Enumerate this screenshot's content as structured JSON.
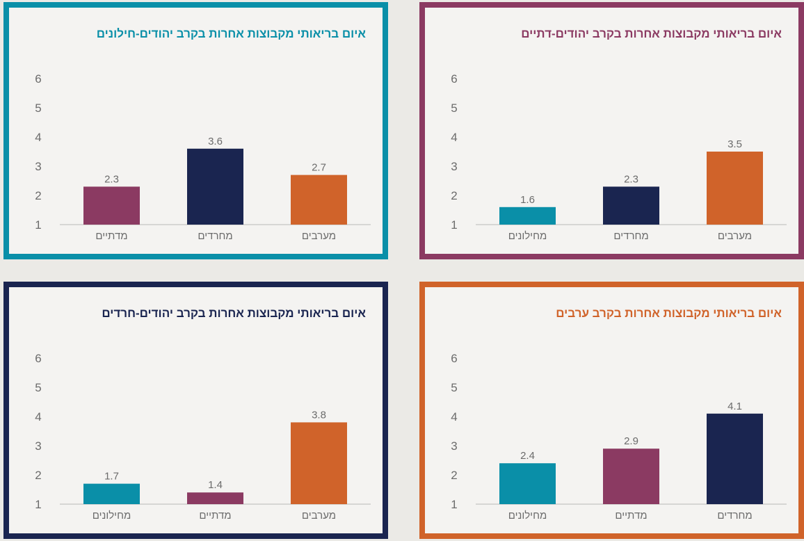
{
  "colors": {
    "teal": "#0a8fa8",
    "plum": "#8b3a62",
    "navy": "#1a2550",
    "orange": "#d0632a",
    "axis_text": "#6b6b6b"
  },
  "panels": [
    {
      "title": "איום בריאותי מקבוצות אחרות בקרב יהודים-דתיים",
      "border_color": "#8b3a62",
      "title_color": "#8b3a62"
    },
    {
      "title": "איום בריאותי מקבוצות אחרות בקרב יהודים-חילונים",
      "border_color": "#0a8fa8",
      "title_color": "#0a8fa8"
    },
    {
      "title": "איום בריאותי מקבוצות אחרות בקרב ערבים",
      "border_color": "#d0632a",
      "title_color": "#d0632a"
    },
    {
      "title": "איום בריאותי מקבוצות אחרות בקרב יהודים-חרדים",
      "border_color": "#1a2550",
      "title_color": "#1a2550"
    }
  ],
  "chart_data": [
    {
      "type": "bar",
      "title": "איום בריאותי מקבוצות אחרות בקרב יהודים-דתיים",
      "categories": [
        "מחילונים",
        "מחרדים",
        "מערבים"
      ],
      "values": [
        1.6,
        2.3,
        3.5
      ],
      "bar_colors": [
        "#0a8fa8",
        "#1a2550",
        "#d0632a"
      ],
      "yticks": [
        1,
        2,
        3,
        4,
        5,
        6
      ],
      "ylim": [
        1,
        6
      ],
      "grid": false
    },
    {
      "type": "bar",
      "title": "איום בריאותי מקבוצות אחרות בקרב יהודים-חילונים",
      "categories": [
        "מדתיים",
        "מחרדים",
        "מערבים"
      ],
      "values": [
        2.3,
        3.6,
        2.7
      ],
      "bar_colors": [
        "#8b3a62",
        "#1a2550",
        "#d0632a"
      ],
      "yticks": [
        1,
        2,
        3,
        4,
        5,
        6
      ],
      "ylim": [
        1,
        6
      ],
      "grid": false
    },
    {
      "type": "bar",
      "title": "איום בריאותי מקבוצות אחרות בקרב ערבים",
      "categories": [
        "מחילונים",
        "מדתיים",
        "מחרדים"
      ],
      "values": [
        2.4,
        2.9,
        4.1
      ],
      "bar_colors": [
        "#0a8fa8",
        "#8b3a62",
        "#1a2550"
      ],
      "yticks": [
        1,
        2,
        3,
        4,
        5,
        6
      ],
      "ylim": [
        1,
        6
      ],
      "grid": false
    },
    {
      "type": "bar",
      "title": "איום בריאותי מקבוצות אחרות בקרב יהודים-חרדים",
      "categories": [
        "מחילונים",
        "מדתיים",
        "מערבים"
      ],
      "values": [
        1.7,
        1.4,
        3.8
      ],
      "bar_colors": [
        "#0a8fa8",
        "#8b3a62",
        "#d0632a"
      ],
      "yticks": [
        1,
        2,
        3,
        4,
        5,
        6
      ],
      "ylim": [
        1,
        6
      ],
      "grid": false
    }
  ]
}
